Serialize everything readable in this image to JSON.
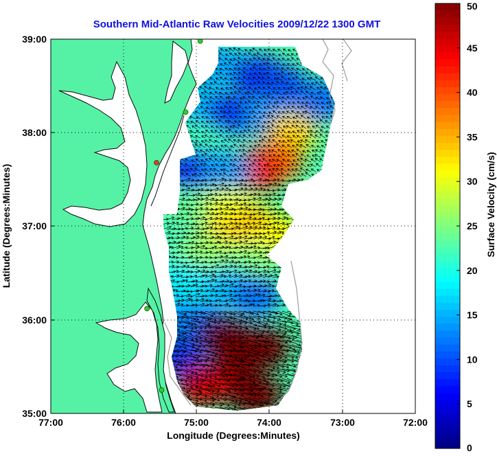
{
  "title": "Southern Mid-Atlantic Raw Velocities 2009/12/22 1300 GMT",
  "x_axis": {
    "label": "Longitude (Degrees:Minutes)",
    "ticks": [
      "77:00",
      "76:00",
      "75:00",
      "74:00",
      "73:00",
      "72:00"
    ]
  },
  "y_axis": {
    "label": "Latitude (Degrees:Minutes)",
    "ticks": [
      "39:00",
      "38:00",
      "37:00",
      "36:00",
      "35:00"
    ]
  },
  "colorbar": {
    "label": "Surface Velocity (cm/s)",
    "ticks": [
      "50",
      "45",
      "40",
      "35",
      "30",
      "25",
      "20",
      "15",
      "10",
      "5",
      "0"
    ],
    "min": 0,
    "max": 50,
    "colormap": "jet"
  },
  "map": {
    "lon_range": [
      -77,
      -72
    ],
    "lat_range": [
      35,
      39
    ],
    "land_color": "#55f2a6",
    "water_color": "#ffffff",
    "coastline_color": "#000000",
    "bathymetry_color": "#9a9a9a",
    "grid": "dotted",
    "vector_color": "#000000"
  },
  "stations": [
    {
      "lon": -74.95,
      "lat": 38.98,
      "color": "#33cc33"
    },
    {
      "lon": -75.15,
      "lat": 38.22,
      "color": "#33cc33"
    },
    {
      "lon": -75.55,
      "lat": 37.68,
      "color": "#ee3333"
    },
    {
      "lon": -75.68,
      "lat": 36.12,
      "color": "#33cc33"
    },
    {
      "lon": -75.48,
      "lat": 35.25,
      "color": "#33cc33"
    }
  ],
  "velocity_field": {
    "units": "cm/s",
    "regions": [
      {
        "lon": -74.85,
        "lat": 38.75,
        "speed": 12
      },
      {
        "lon": -74.55,
        "lat": 38.7,
        "speed": 15
      },
      {
        "lon": -74.15,
        "lat": 38.6,
        "speed": 8
      },
      {
        "lon": -73.85,
        "lat": 38.5,
        "speed": 10
      },
      {
        "lon": -73.3,
        "lat": 38.35,
        "speed": 12
      },
      {
        "lon": -74.95,
        "lat": 38.3,
        "speed": 16
      },
      {
        "lon": -74.55,
        "lat": 38.2,
        "speed": 9
      },
      {
        "lon": -74.0,
        "lat": 38.15,
        "speed": 14
      },
      {
        "lon": -73.7,
        "lat": 38.0,
        "speed": 33
      },
      {
        "lon": -73.9,
        "lat": 37.7,
        "speed": 38
      },
      {
        "lon": -74.15,
        "lat": 37.6,
        "speed": 42
      },
      {
        "lon": -74.95,
        "lat": 37.9,
        "speed": 22
      },
      {
        "lon": -75.05,
        "lat": 37.6,
        "speed": 8
      },
      {
        "lon": -74.6,
        "lat": 37.6,
        "speed": 14
      },
      {
        "lon": -75.0,
        "lat": 37.2,
        "speed": 24
      },
      {
        "lon": -74.55,
        "lat": 37.2,
        "speed": 30
      },
      {
        "lon": -74.15,
        "lat": 37.0,
        "speed": 35
      },
      {
        "lon": -73.85,
        "lat": 36.9,
        "speed": 31
      },
      {
        "lon": -74.6,
        "lat": 36.9,
        "speed": 33
      },
      {
        "lon": -75.3,
        "lat": 36.8,
        "speed": 22
      },
      {
        "lon": -74.9,
        "lat": 36.7,
        "speed": 26
      },
      {
        "lon": -74.3,
        "lat": 36.6,
        "speed": 25
      },
      {
        "lon": -75.2,
        "lat": 36.4,
        "speed": 18
      },
      {
        "lon": -74.6,
        "lat": 36.35,
        "speed": 16
      },
      {
        "lon": -74.2,
        "lat": 36.25,
        "speed": 12
      },
      {
        "lon": -75.25,
        "lat": 36.0,
        "speed": 14
      },
      {
        "lon": -74.9,
        "lat": 35.95,
        "speed": 12
      },
      {
        "lon": -75.25,
        "lat": 35.6,
        "speed": 9
      },
      {
        "lon": -74.6,
        "lat": 35.8,
        "speed": 50
      },
      {
        "lon": -74.1,
        "lat": 35.7,
        "speed": 50
      },
      {
        "lon": -74.5,
        "lat": 35.4,
        "speed": 50
      },
      {
        "lon": -74.9,
        "lat": 35.3,
        "speed": 45
      },
      {
        "lon": -74.2,
        "lat": 35.2,
        "speed": 50
      }
    ]
  }
}
